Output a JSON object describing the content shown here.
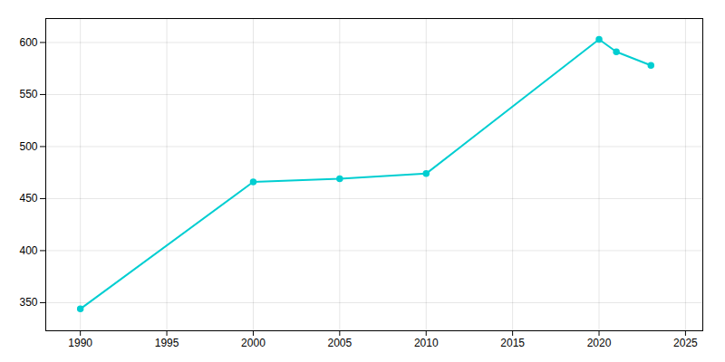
{
  "chart_data": {
    "type": "line",
    "x": [
      1990,
      2000,
      2005,
      2010,
      2020,
      2021,
      2023
    ],
    "values": [
      344,
      466,
      469,
      474,
      603,
      591,
      578
    ],
    "color": "#00CED1",
    "marker": "circle",
    "xlim": [
      1988,
      2026
    ],
    "ylim": [
      323,
      623
    ],
    "xticks": [
      1990,
      1995,
      2000,
      2005,
      2010,
      2015,
      2020,
      2025
    ],
    "yticks": [
      350,
      400,
      450,
      500,
      550,
      600
    ],
    "grid": true
  }
}
